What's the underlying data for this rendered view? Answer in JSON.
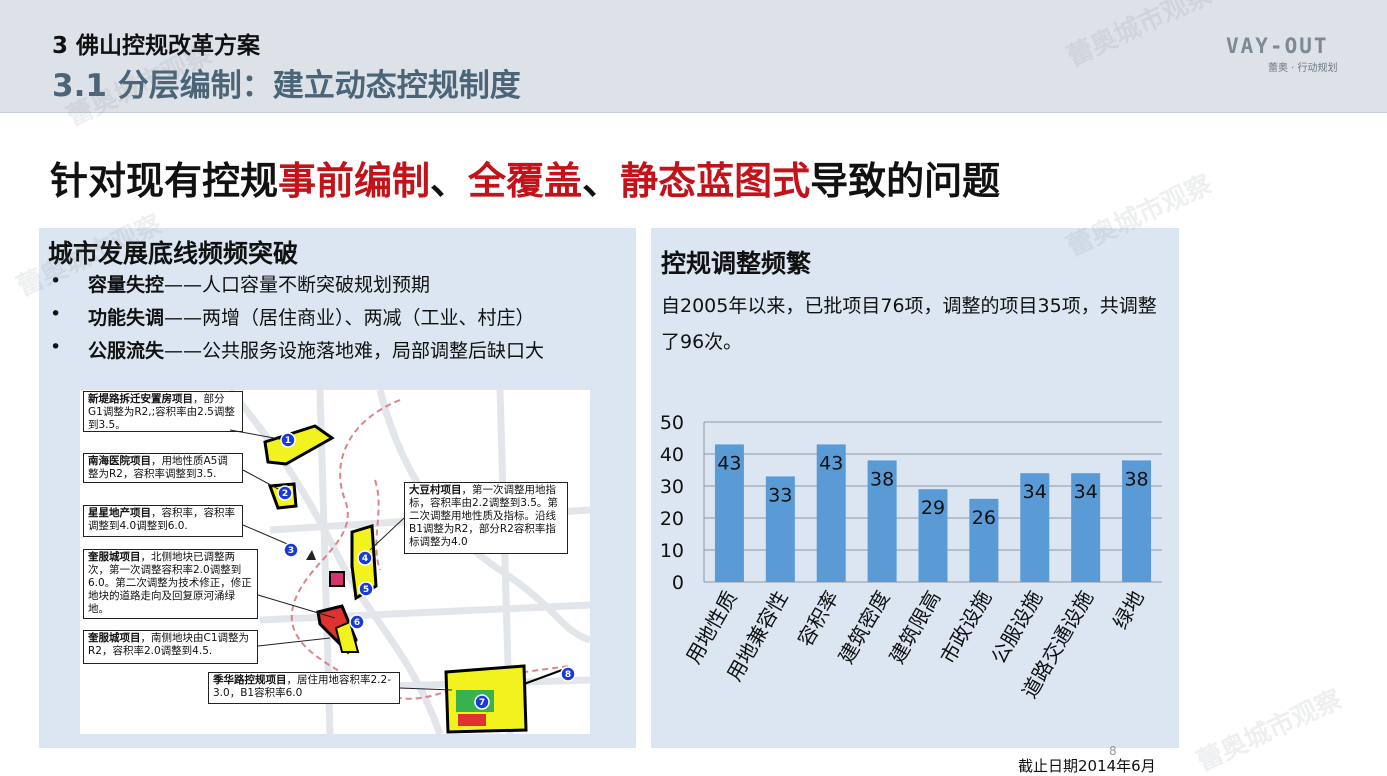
{
  "header": {
    "section": "3 佛山控规改革方案",
    "subtitle": "3.1 分层编制：建立动态控规制度",
    "logo_mark": "VAY-OUT",
    "logo_tag": "蕾奥 · 行动规划"
  },
  "headline": {
    "prefix": "针对现有控规",
    "h1": "事前编制",
    "sep1": "、",
    "h2": "全覆盖",
    "sep2": "、",
    "h3": "静态蓝图式",
    "suffix": "导致的问题",
    "highlight_color": "#c4121a"
  },
  "left_panel": {
    "title": "城市发展底线频频突破",
    "bullets": [
      {
        "bullet": "•",
        "key": "容量失控",
        "text": "——人口容量不断突破规划预期"
      },
      {
        "bullet": "•",
        "key": "功能失调",
        "text": "——两增（居住商业）、两减（工业、村庄）"
      },
      {
        "bullet": "•",
        "key": "公服流失",
        "text": "——公共服务设施落地难，局部调整后缺口大"
      }
    ]
  },
  "map": {
    "callouts": [
      {
        "title": "新堤路拆迁安置房项目",
        "text": "，部分G1调整为R2,;容积率由2.5调整到3.5。"
      },
      {
        "title": "南海医院项目",
        "text": "，用地性质A5调整为R2，容积率调整到3.5."
      },
      {
        "title": "星星地产项目",
        "text": "，容积率，容积率调整到4.0调整到6.0."
      },
      {
        "title": "奎服城项目",
        "text": "，北侧地块已调整两次，第一次调整容积率2.0调整到6.0。第二次调整为技术修正，修正地块的道路走向及回复原河涌绿地。"
      },
      {
        "title": "奎服城项目",
        "text": "，南侧地块由C1调整为R2，容积率2.0调整到4.5."
      },
      {
        "title": "季华路控规项目",
        "text": "，居住用地容积率2.2-3.0，B1容积率6.0"
      },
      {
        "title": "大豆村项目",
        "text": "，第一次调整用地指标，容积率由2.2调整到3.5。第二次调整用地性质及指标。沿线B1调整为R2，部分R2容积率指标调整为4.0"
      }
    ],
    "markers": [
      "1",
      "2",
      "3",
      "4",
      "5",
      "6",
      "7",
      "8"
    ]
  },
  "right_panel": {
    "title": "控规调整频繁",
    "paragraph": "自2005年以来，已批项目76项，调整的项目35项，共调整了96次。"
  },
  "chart_data": {
    "type": "bar",
    "categories": [
      "用地性质",
      "用地兼容性",
      "容积率",
      "建筑密度",
      "建筑限高",
      "市政设施",
      "公服设施",
      "道路交通设施",
      "绿地"
    ],
    "values": [
      43,
      33,
      43,
      38,
      29,
      26,
      34,
      34,
      38
    ],
    "ylim": [
      0,
      50
    ],
    "yticks": [
      0,
      10,
      20,
      30,
      40,
      50
    ],
    "grid": true,
    "bar_color": "#5b9bd5",
    "title": "",
    "xlabel": "",
    "ylabel": ""
  },
  "footer": {
    "date": "截止日期2014年6月",
    "page": "8"
  },
  "watermark": "蕾奥城市观察"
}
